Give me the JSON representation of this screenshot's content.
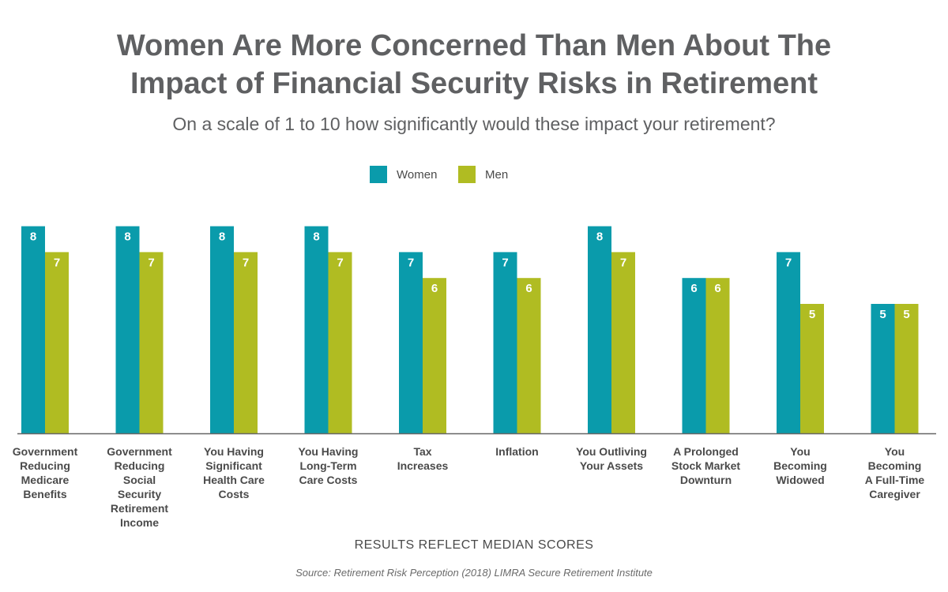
{
  "chart_data": {
    "type": "bar",
    "title": "Women Are More Concerned Than Men About The Impact of Financial Security Risks in Retirement",
    "title_lines": [
      "Women Are More Concerned Than Men About The",
      "Impact of Financial Security Risks in Retirement"
    ],
    "subtitle": "On a scale of 1 to 10 how significantly would these impact your retirement?",
    "categories": [
      [
        "Government",
        "Reducing",
        "Medicare",
        "Benefits"
      ],
      [
        "Government",
        "Reducing",
        "Social",
        "Security",
        "Retirement",
        "Income"
      ],
      [
        "You Having",
        "Significant",
        "Health Care",
        "Costs"
      ],
      [
        "You Having",
        "Long-Term",
        "Care Costs"
      ],
      [
        "Tax",
        "Increases"
      ],
      [
        "Inflation"
      ],
      [
        "You Outliving",
        "Your Assets"
      ],
      [
        "A Prolonged",
        "Stock Market",
        "Downturn"
      ],
      [
        "You",
        "Becoming",
        "Widowed"
      ],
      [
        "You",
        "Becoming",
        "A Full-Time",
        "Caregiver"
      ]
    ],
    "series": [
      {
        "name": "Women",
        "color": "#0a9bab",
        "values": [
          8,
          8,
          8,
          8,
          7,
          7,
          8,
          6,
          7,
          5
        ]
      },
      {
        "name": "Men",
        "color": "#b0bc22",
        "values": [
          7,
          7,
          7,
          7,
          6,
          6,
          7,
          6,
          5,
          5
        ]
      }
    ],
    "legend_position": "top-center",
    "grid": false,
    "ylim": [
      0,
      8
    ],
    "xlabel": "RESULTS REFLECT MEDIAN SCORES",
    "ylabel": ""
  },
  "footer": {
    "source": "Source: Retirement Risk Perception (2018) LIMRA Secure Retirement Institute"
  }
}
